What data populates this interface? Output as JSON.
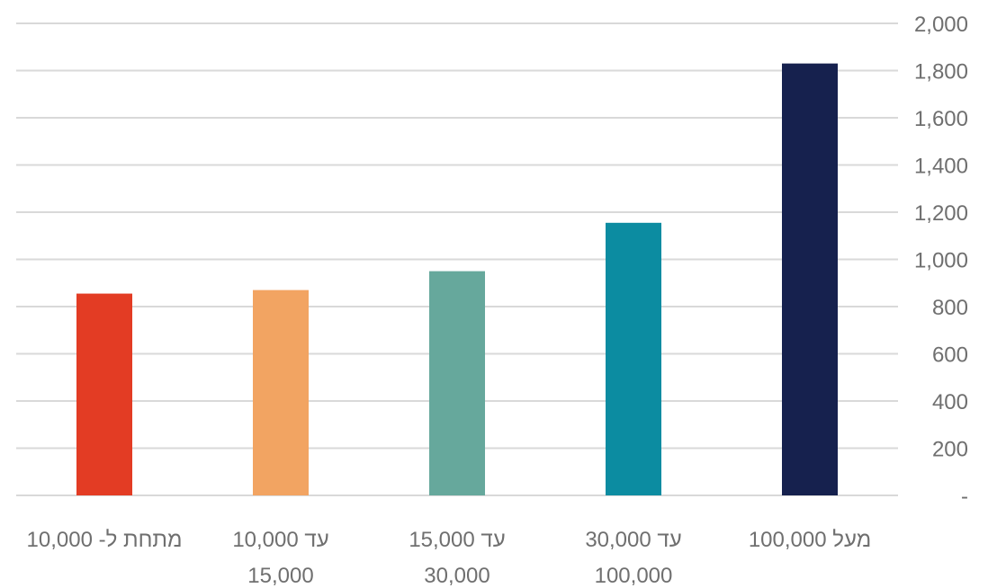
{
  "chart_data": {
    "type": "bar",
    "categories": [
      [
        "מתחת ל- 10,000"
      ],
      [
        "10,000 עד",
        "15,000"
      ],
      [
        "15,000 עד",
        "30,000"
      ],
      [
        "30,000 עד",
        "100,000"
      ],
      [
        "מעל 100,000"
      ]
    ],
    "values": [
      855,
      870,
      950,
      1155,
      1830
    ],
    "colors": [
      "#e33c24",
      "#f2a462",
      "#66a89c",
      "#0c8ca1",
      "#16214e"
    ],
    "ylim": [
      0,
      2000
    ],
    "y_ticks": [
      {
        "value": 0,
        "label": "-"
      },
      {
        "value": 200,
        "label": "200"
      },
      {
        "value": 400,
        "label": "400"
      },
      {
        "value": 600,
        "label": "600"
      },
      {
        "value": 800,
        "label": "800"
      },
      {
        "value": 1000,
        "label": "1,000"
      },
      {
        "value": 1200,
        "label": "1,200"
      },
      {
        "value": 1400,
        "label": "1,400"
      },
      {
        "value": 1600,
        "label": "1,600"
      },
      {
        "value": 1800,
        "label": "1,800"
      },
      {
        "value": 2000,
        "label": "2,000"
      }
    ],
    "y_axis_side": "right",
    "grid": true,
    "gridline_color": "#d9d9d9",
    "legend": "none"
  }
}
